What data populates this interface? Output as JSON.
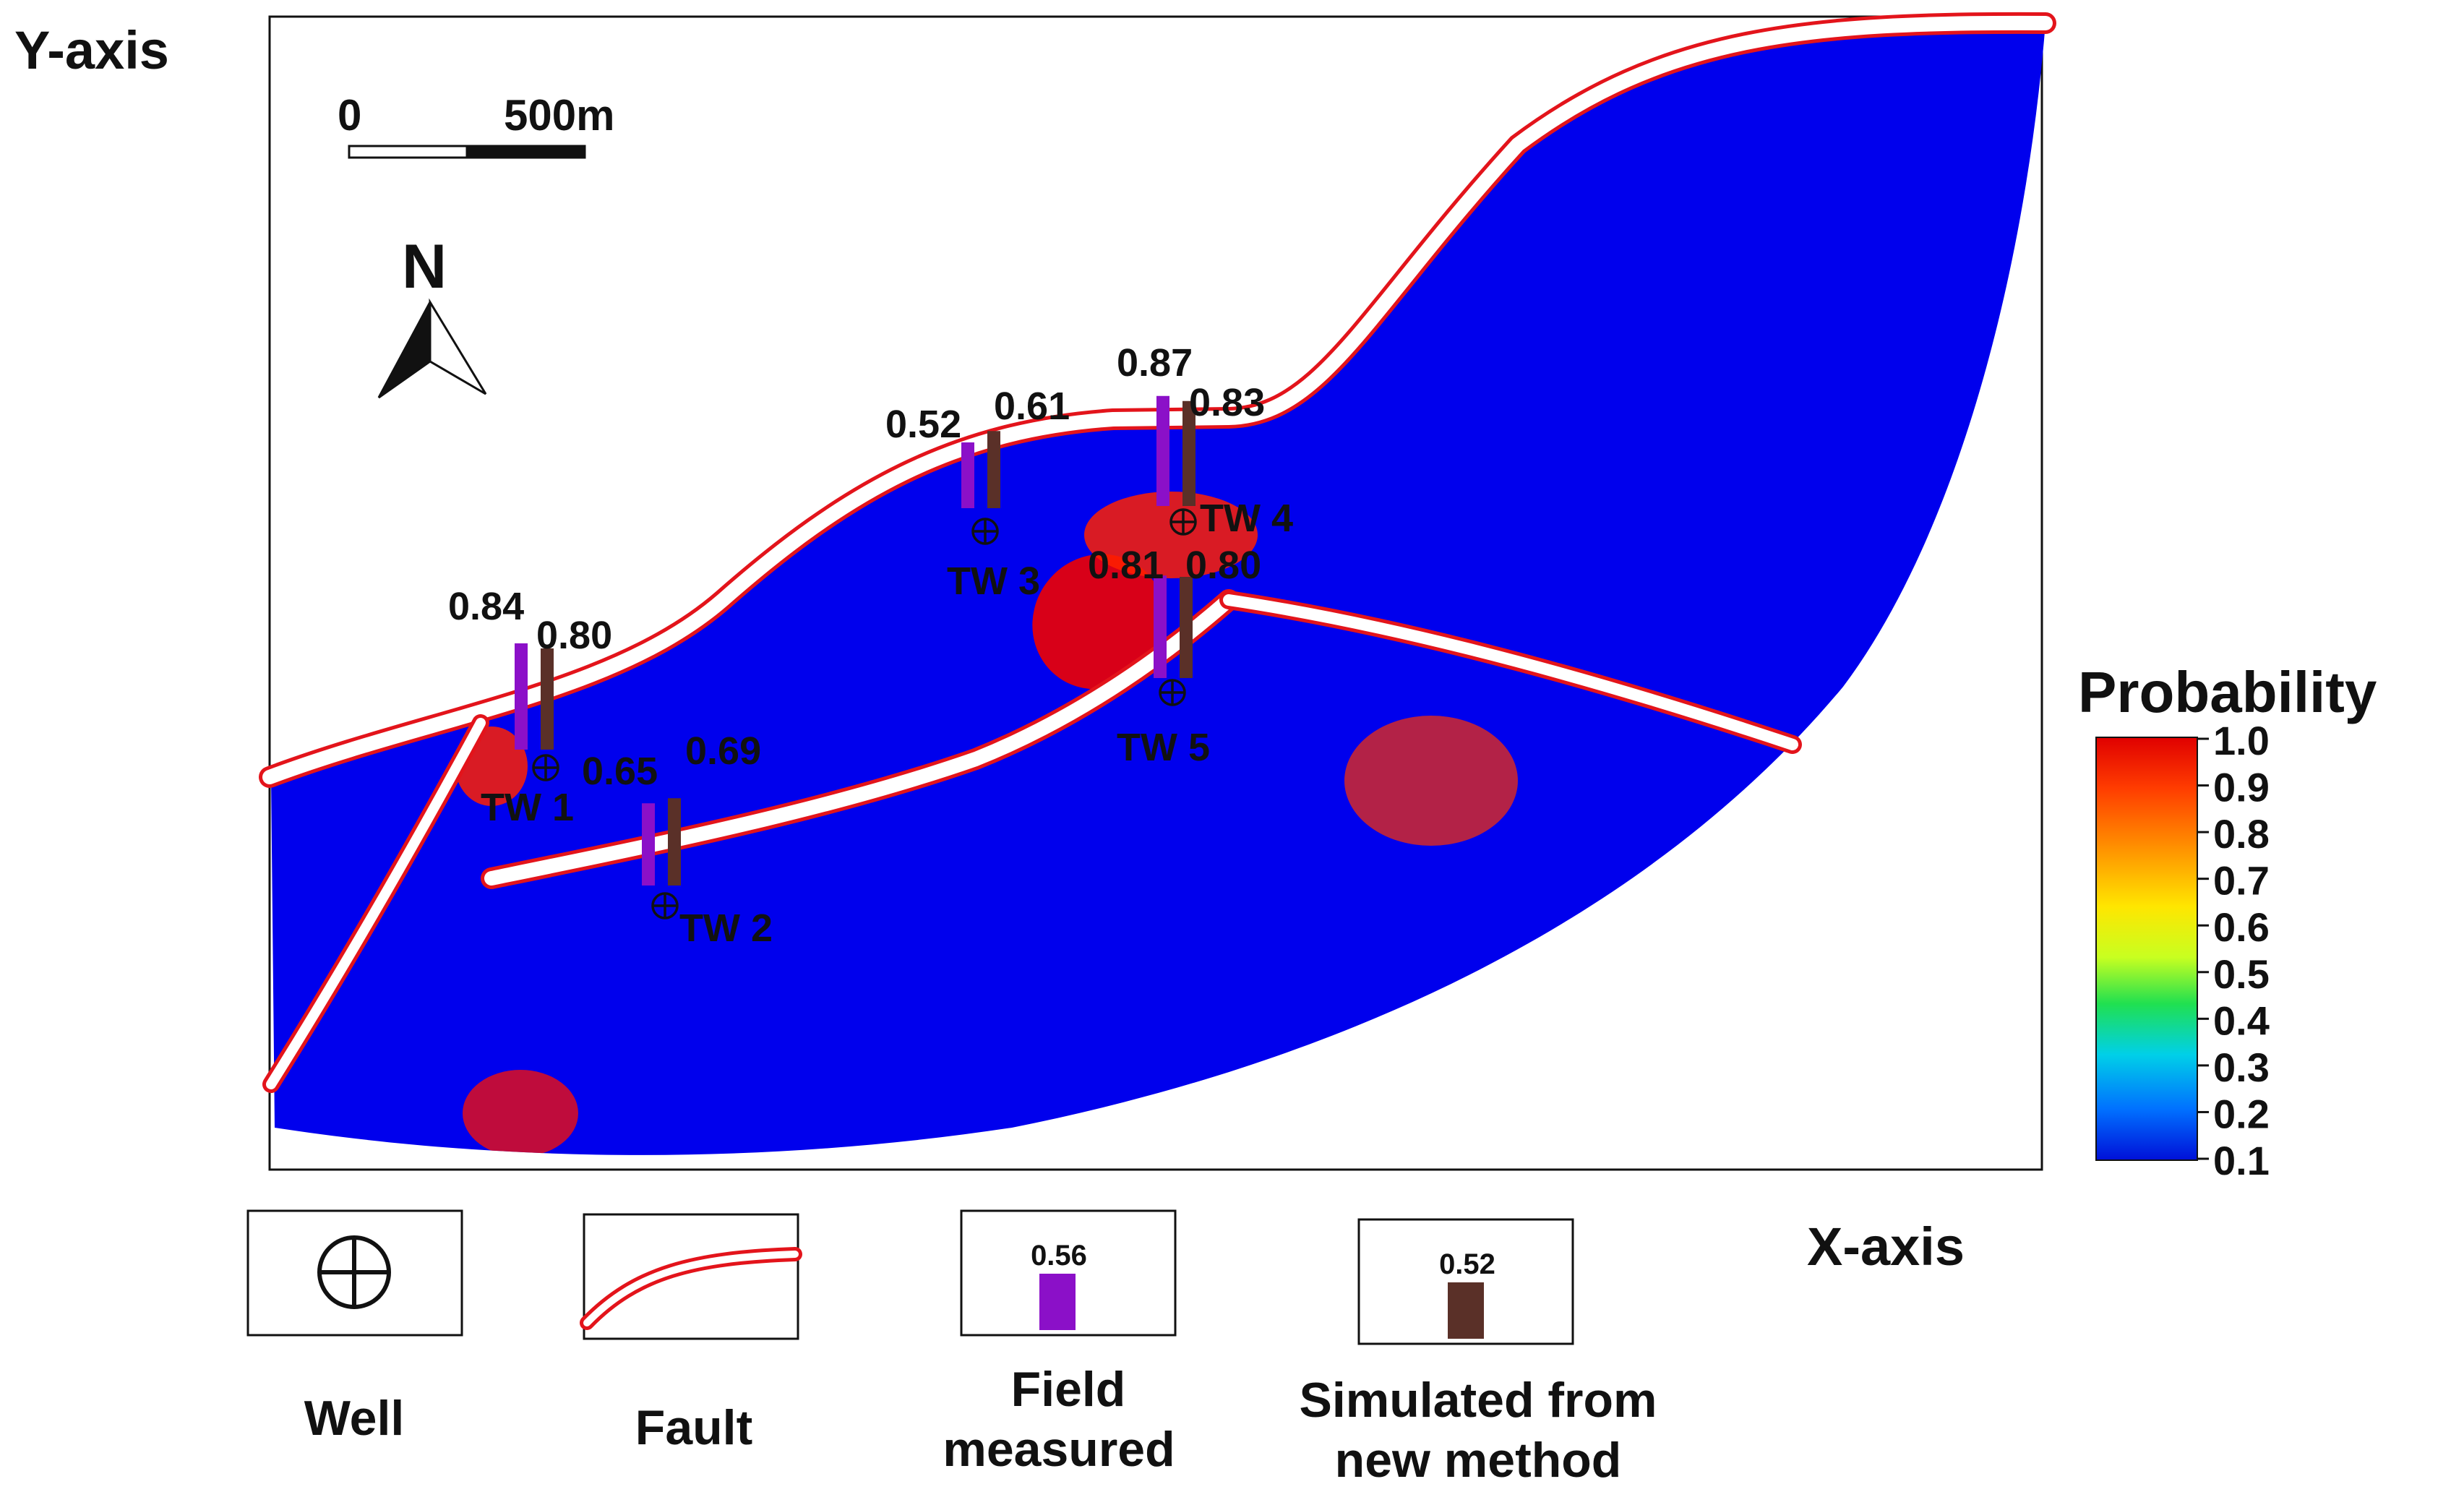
{
  "axes": {
    "y_label": "Y-axis",
    "x_label": "X-axis"
  },
  "scale_bar": {
    "start_label": "0",
    "end_label": "500m",
    "length_m": 500
  },
  "north_arrow": {
    "label": "N",
    "icon": "north-arrow-icon"
  },
  "colorbar": {
    "title": "Probability",
    "ticks": [
      "1.0",
      "0.9",
      "0.8",
      "0.7",
      "0.6",
      "0.5",
      "0.4",
      "0.3",
      "0.2",
      "0.1"
    ],
    "range": [
      0.1,
      1.0
    ],
    "colormap": "jet"
  },
  "colors": {
    "field_measured": "#8B10C8",
    "simulated": "#5A3028",
    "fault_line": "#E3141B"
  },
  "wells": [
    {
      "name": "TW 1",
      "field": 0.84,
      "field_label": "0.84",
      "simulated": 0.8,
      "simulated_label": "0.80"
    },
    {
      "name": "TW 2",
      "field": 0.65,
      "field_label": "0.65",
      "simulated": 0.69,
      "simulated_label": "0.69"
    },
    {
      "name": "TW 3",
      "field": 0.52,
      "field_label": "0.52",
      "simulated": 0.61,
      "simulated_label": "0.61"
    },
    {
      "name": "TW 4",
      "field": 0.87,
      "field_label": "0.87",
      "simulated": 0.83,
      "simulated_label": "0.83"
    },
    {
      "name": "TW 5",
      "field": 0.81,
      "field_label": "0.81",
      "simulated": 0.8,
      "simulated_label": "0.80"
    }
  ],
  "legend": {
    "well": {
      "label": "Well",
      "icon": "well-icon"
    },
    "fault": {
      "label": "Fault",
      "icon": "fault-icon"
    },
    "field": {
      "label_line1": "Field",
      "label_line2": "measured",
      "sample_value": "0.56"
    },
    "simulated": {
      "label_line1": "Simulated from",
      "label_line2": "new method",
      "sample_value": "0.52"
    }
  }
}
